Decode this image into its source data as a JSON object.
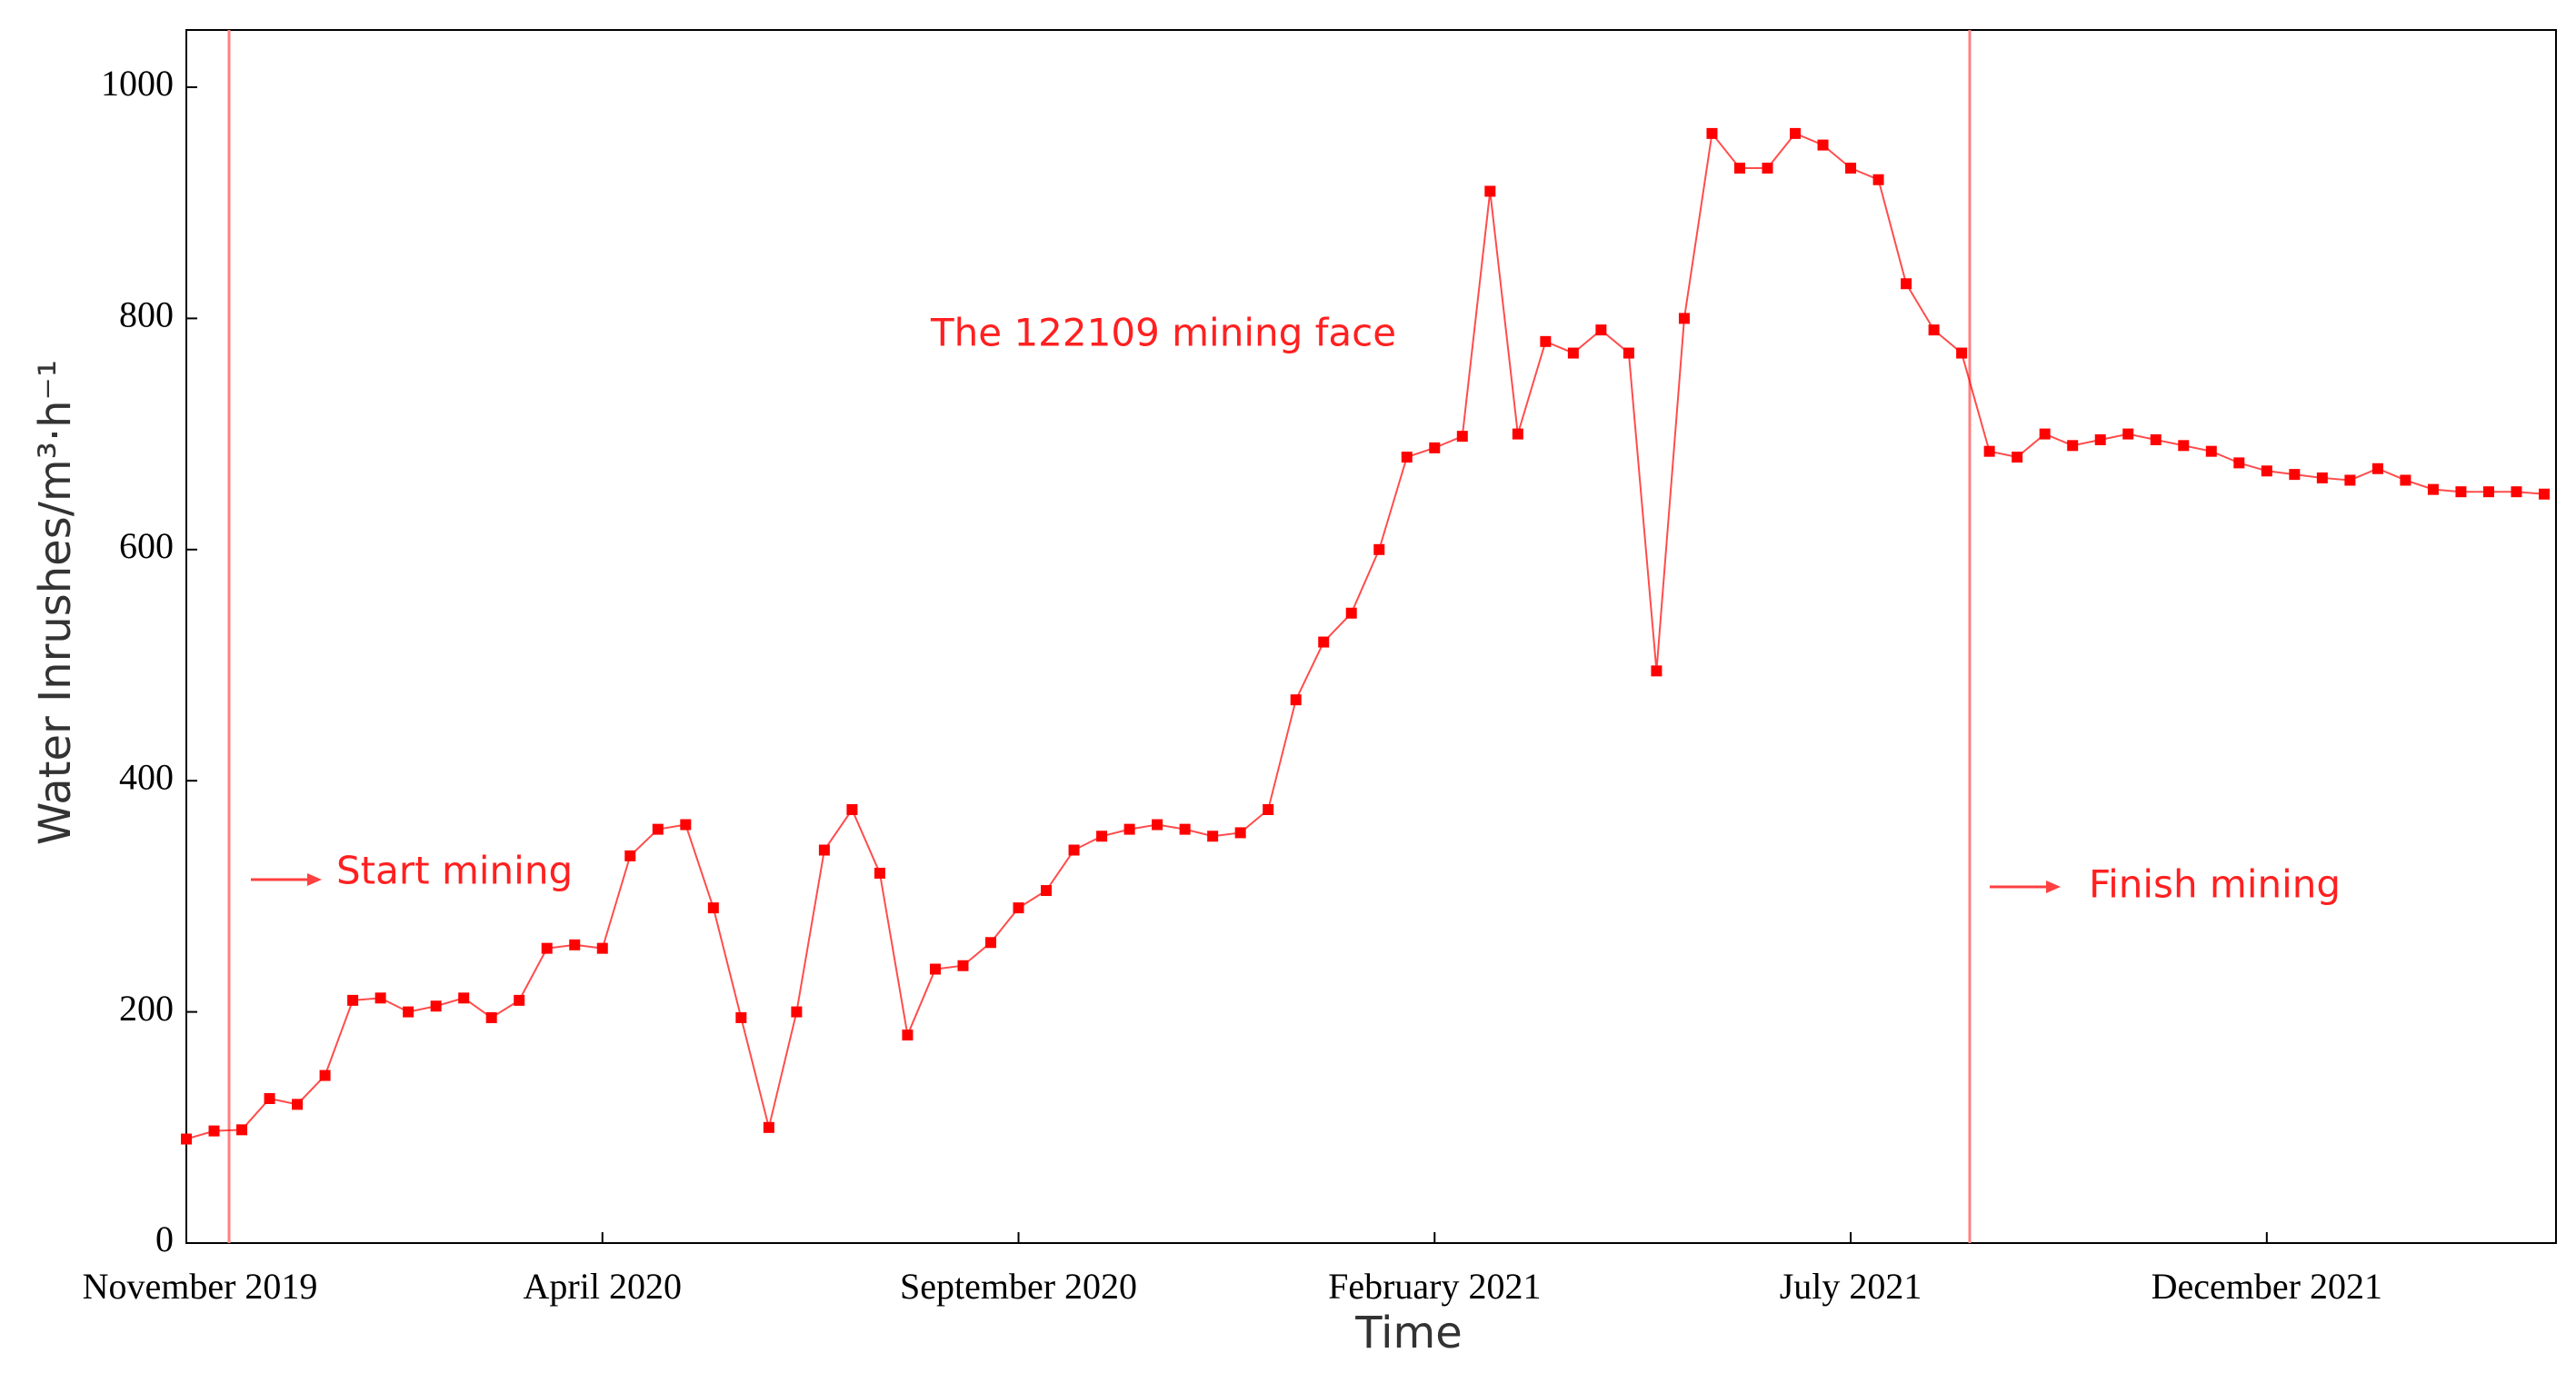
{
  "chart_data": {
    "type": "line",
    "ylabel": "Water Inrushes/m³·h⁻¹",
    "xlabel": "Time",
    "annotations": [
      "Start mining",
      "The 122109 mining face",
      "Finish mining"
    ],
    "categories": [
      "November 2019",
      null,
      null,
      null,
      null,
      null,
      null,
      null,
      null,
      null,
      null,
      null,
      null,
      null,
      null,
      "April 2020",
      null,
      null,
      null,
      null,
      null,
      null,
      null,
      null,
      null,
      null,
      null,
      null,
      null,
      null,
      "September 2020",
      null,
      null,
      null,
      null,
      null,
      null,
      null,
      null,
      null,
      null,
      null,
      null,
      null,
      null,
      "February 2021",
      null,
      null,
      null,
      null,
      null,
      null,
      null,
      null,
      null,
      null,
      null,
      null,
      null,
      null,
      "July 2021",
      null,
      null,
      null,
      null,
      null,
      null,
      null,
      null,
      null,
      null,
      null,
      null,
      null,
      null,
      "December 2021",
      null,
      null,
      null,
      null,
      null,
      null,
      null,
      null,
      null,
      null
    ],
    "values": [
      90,
      97,
      98,
      125,
      120,
      145,
      210,
      212,
      200,
      205,
      212,
      195,
      210,
      255,
      258,
      255,
      335,
      358,
      362,
      290,
      195,
      100,
      200,
      340,
      375,
      320,
      180,
      237,
      240,
      260,
      290,
      305,
      340,
      352,
      358,
      362,
      358,
      352,
      355,
      375,
      470,
      520,
      545,
      600,
      680,
      688,
      698,
      910,
      700,
      780,
      770,
      790,
      770,
      495,
      800,
      960,
      930,
      930,
      960,
      950,
      930,
      920,
      830,
      790,
      770,
      685,
      680,
      700,
      690,
      695,
      700,
      695,
      690,
      685,
      675,
      668,
      665,
      662,
      660,
      670,
      660,
      652,
      650,
      650,
      650,
      648
    ],
    "color": "#ff0000",
    "ylim": [
      0,
      1000
    ],
    "yticks": [
      0,
      200,
      400,
      600,
      800,
      1000
    ],
    "grid": false
  }
}
